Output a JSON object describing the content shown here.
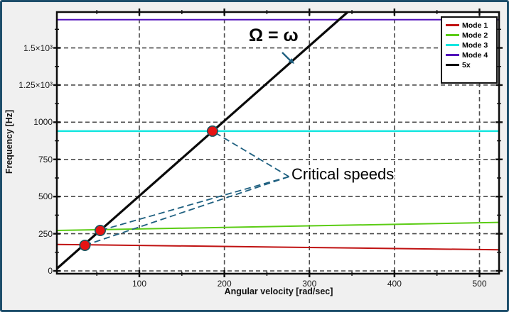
{
  "window": {
    "background": "#f0f0f0",
    "border_color": "#1d4e6b",
    "plot_background": "#ffffff"
  },
  "chart_data": {
    "type": "line",
    "title": "",
    "xlabel": "Angular velocity [rad/sec]",
    "ylabel": "Frequency [Hz]",
    "xlim": [
      3,
      523
    ],
    "ylim": [
      -19,
      1741
    ],
    "grid": true,
    "gridline_color": "#4d4d4d",
    "legend_position": "top-right",
    "x_ticks": [
      {
        "value": 100,
        "label": "100"
      },
      {
        "value": 200,
        "label": "200"
      },
      {
        "value": 300,
        "label": "300"
      },
      {
        "value": 400,
        "label": "400"
      },
      {
        "value": 500,
        "label": "500"
      }
    ],
    "x_minor_ticks": [
      50,
      150,
      250,
      350,
      450
    ],
    "y_ticks": [
      {
        "value": 0,
        "label": "0"
      },
      {
        "value": 250,
        "label": "250"
      },
      {
        "value": 500,
        "label": "500"
      },
      {
        "value": 750,
        "label": "750"
      },
      {
        "value": 1000,
        "label": "1000"
      },
      {
        "value": 1250,
        "label": "1.25×10³"
      },
      {
        "value": 1500,
        "label": "1.5×10³"
      }
    ],
    "y_minor_ticks": [
      125,
      375,
      625,
      875,
      1125,
      1375,
      1625
    ],
    "series": [
      {
        "name": "Mode 1",
        "color": "#c01212",
        "width": 2,
        "points": [
          [
            3,
            178
          ],
          [
            523,
            142
          ]
        ]
      },
      {
        "name": "Mode 2",
        "color": "#5bcc14",
        "width": 2,
        "points": [
          [
            3,
            272
          ],
          [
            523,
            326
          ]
        ]
      },
      {
        "name": "Mode 3",
        "color": "#14e6e0",
        "width": 2.5,
        "points": [
          [
            3,
            940
          ],
          [
            523,
            940
          ]
        ]
      },
      {
        "name": "Mode 4",
        "color": "#5212bb",
        "width": 2,
        "points": [
          [
            3,
            1690
          ],
          [
            523,
            1690
          ]
        ]
      },
      {
        "name": "5x",
        "color": "#0a0a0a",
        "width": 3.2,
        "points": [
          [
            3,
            15
          ],
          [
            345,
            1741
          ]
        ]
      }
    ],
    "critical_speeds": [
      {
        "omega": 36,
        "frequency": 172
      },
      {
        "omega": 54,
        "frequency": 272
      },
      {
        "omega": 186,
        "frequency": 940
      }
    ],
    "annotations": {
      "omega_label": "Ω = ω",
      "critical_label": "Critical speeds",
      "leader_origin": {
        "omega": 276,
        "frequency": 634
      },
      "marker_color": "#e61414",
      "marker_outline": "#17555f",
      "leader_color": "#1f6080"
    }
  }
}
